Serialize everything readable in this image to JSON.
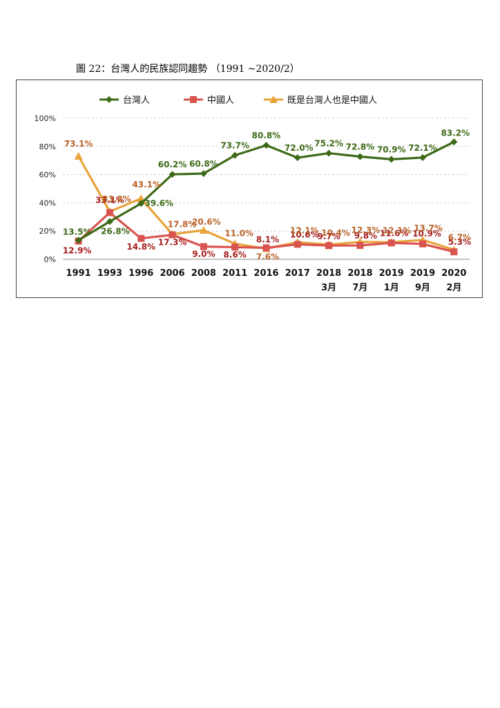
{
  "caption": "圖 22：台灣人的民族認同趨勢 （1991 ~2020/2）",
  "chart_data": {
    "type": "line",
    "categories": [
      "1991",
      "1993",
      "1996",
      "2006",
      "2008",
      "2011",
      "2016",
      "2017",
      "2018",
      "2018",
      "2019",
      "2019",
      "2020"
    ],
    "category_sublabels": [
      "",
      "",
      "",
      "",
      "",
      "",
      "",
      "",
      "3月",
      "7月",
      "1月",
      "9月",
      "2月"
    ],
    "ylim": [
      0,
      100
    ],
    "yticks": [
      "0%",
      "20%",
      "40%",
      "60%",
      "80%",
      "100%"
    ],
    "grid": true,
    "legend_position": "top",
    "series": [
      {
        "name": "台灣人",
        "color": "#3d6a17",
        "label_color": "#3d6a17",
        "marker": "diamond",
        "values": [
          13.5,
          26.8,
          39.6,
          60.2,
          60.8,
          73.7,
          80.8,
          72.0,
          75.2,
          72.8,
          70.9,
          72.1,
          83.2
        ],
        "labels": [
          "13.5%",
          "26.8%",
          "39.6%",
          "60.2%",
          "60.8%",
          "73.7%",
          "80.8%",
          "72.0%",
          "75.2%",
          "72.8%",
          "70.9%",
          "72.1%",
          "83.2%"
        ]
      },
      {
        "name": "中國人",
        "color": "#d9534f",
        "label_color": "#a51d1d",
        "marker": "square",
        "values": [
          12.9,
          33.1,
          14.8,
          17.3,
          9.0,
          8.6,
          8.1,
          10.6,
          9.7,
          9.8,
          11.6,
          10.9,
          5.3
        ],
        "labels": [
          "12.9%",
          "33.1%",
          "14.8%",
          "17.3%",
          "9.0%",
          "8.6%",
          "8.1%",
          "10.6%",
          "9.7%",
          "9.8%",
          "11.6%",
          "10.9%",
          "5.3%"
        ]
      },
      {
        "name": "既是台灣人也是中國人",
        "color": "#e8a33a",
        "label_color": "#b8622a",
        "marker": "triangle",
        "values": [
          73.1,
          33.8,
          43.1,
          17.8,
          20.6,
          11.0,
          7.6,
          12.1,
          10.4,
          12.3,
          12.1,
          13.7,
          6.7
        ],
        "labels": [
          "73.1%",
          "33.8%",
          "43.1%",
          "17.8%",
          "20.6%",
          "11.0%",
          "7.6%",
          "12.1%",
          "10.4%",
          "12.3%",
          "12.1%",
          "13.7%",
          "6.7%"
        ]
      }
    ]
  }
}
